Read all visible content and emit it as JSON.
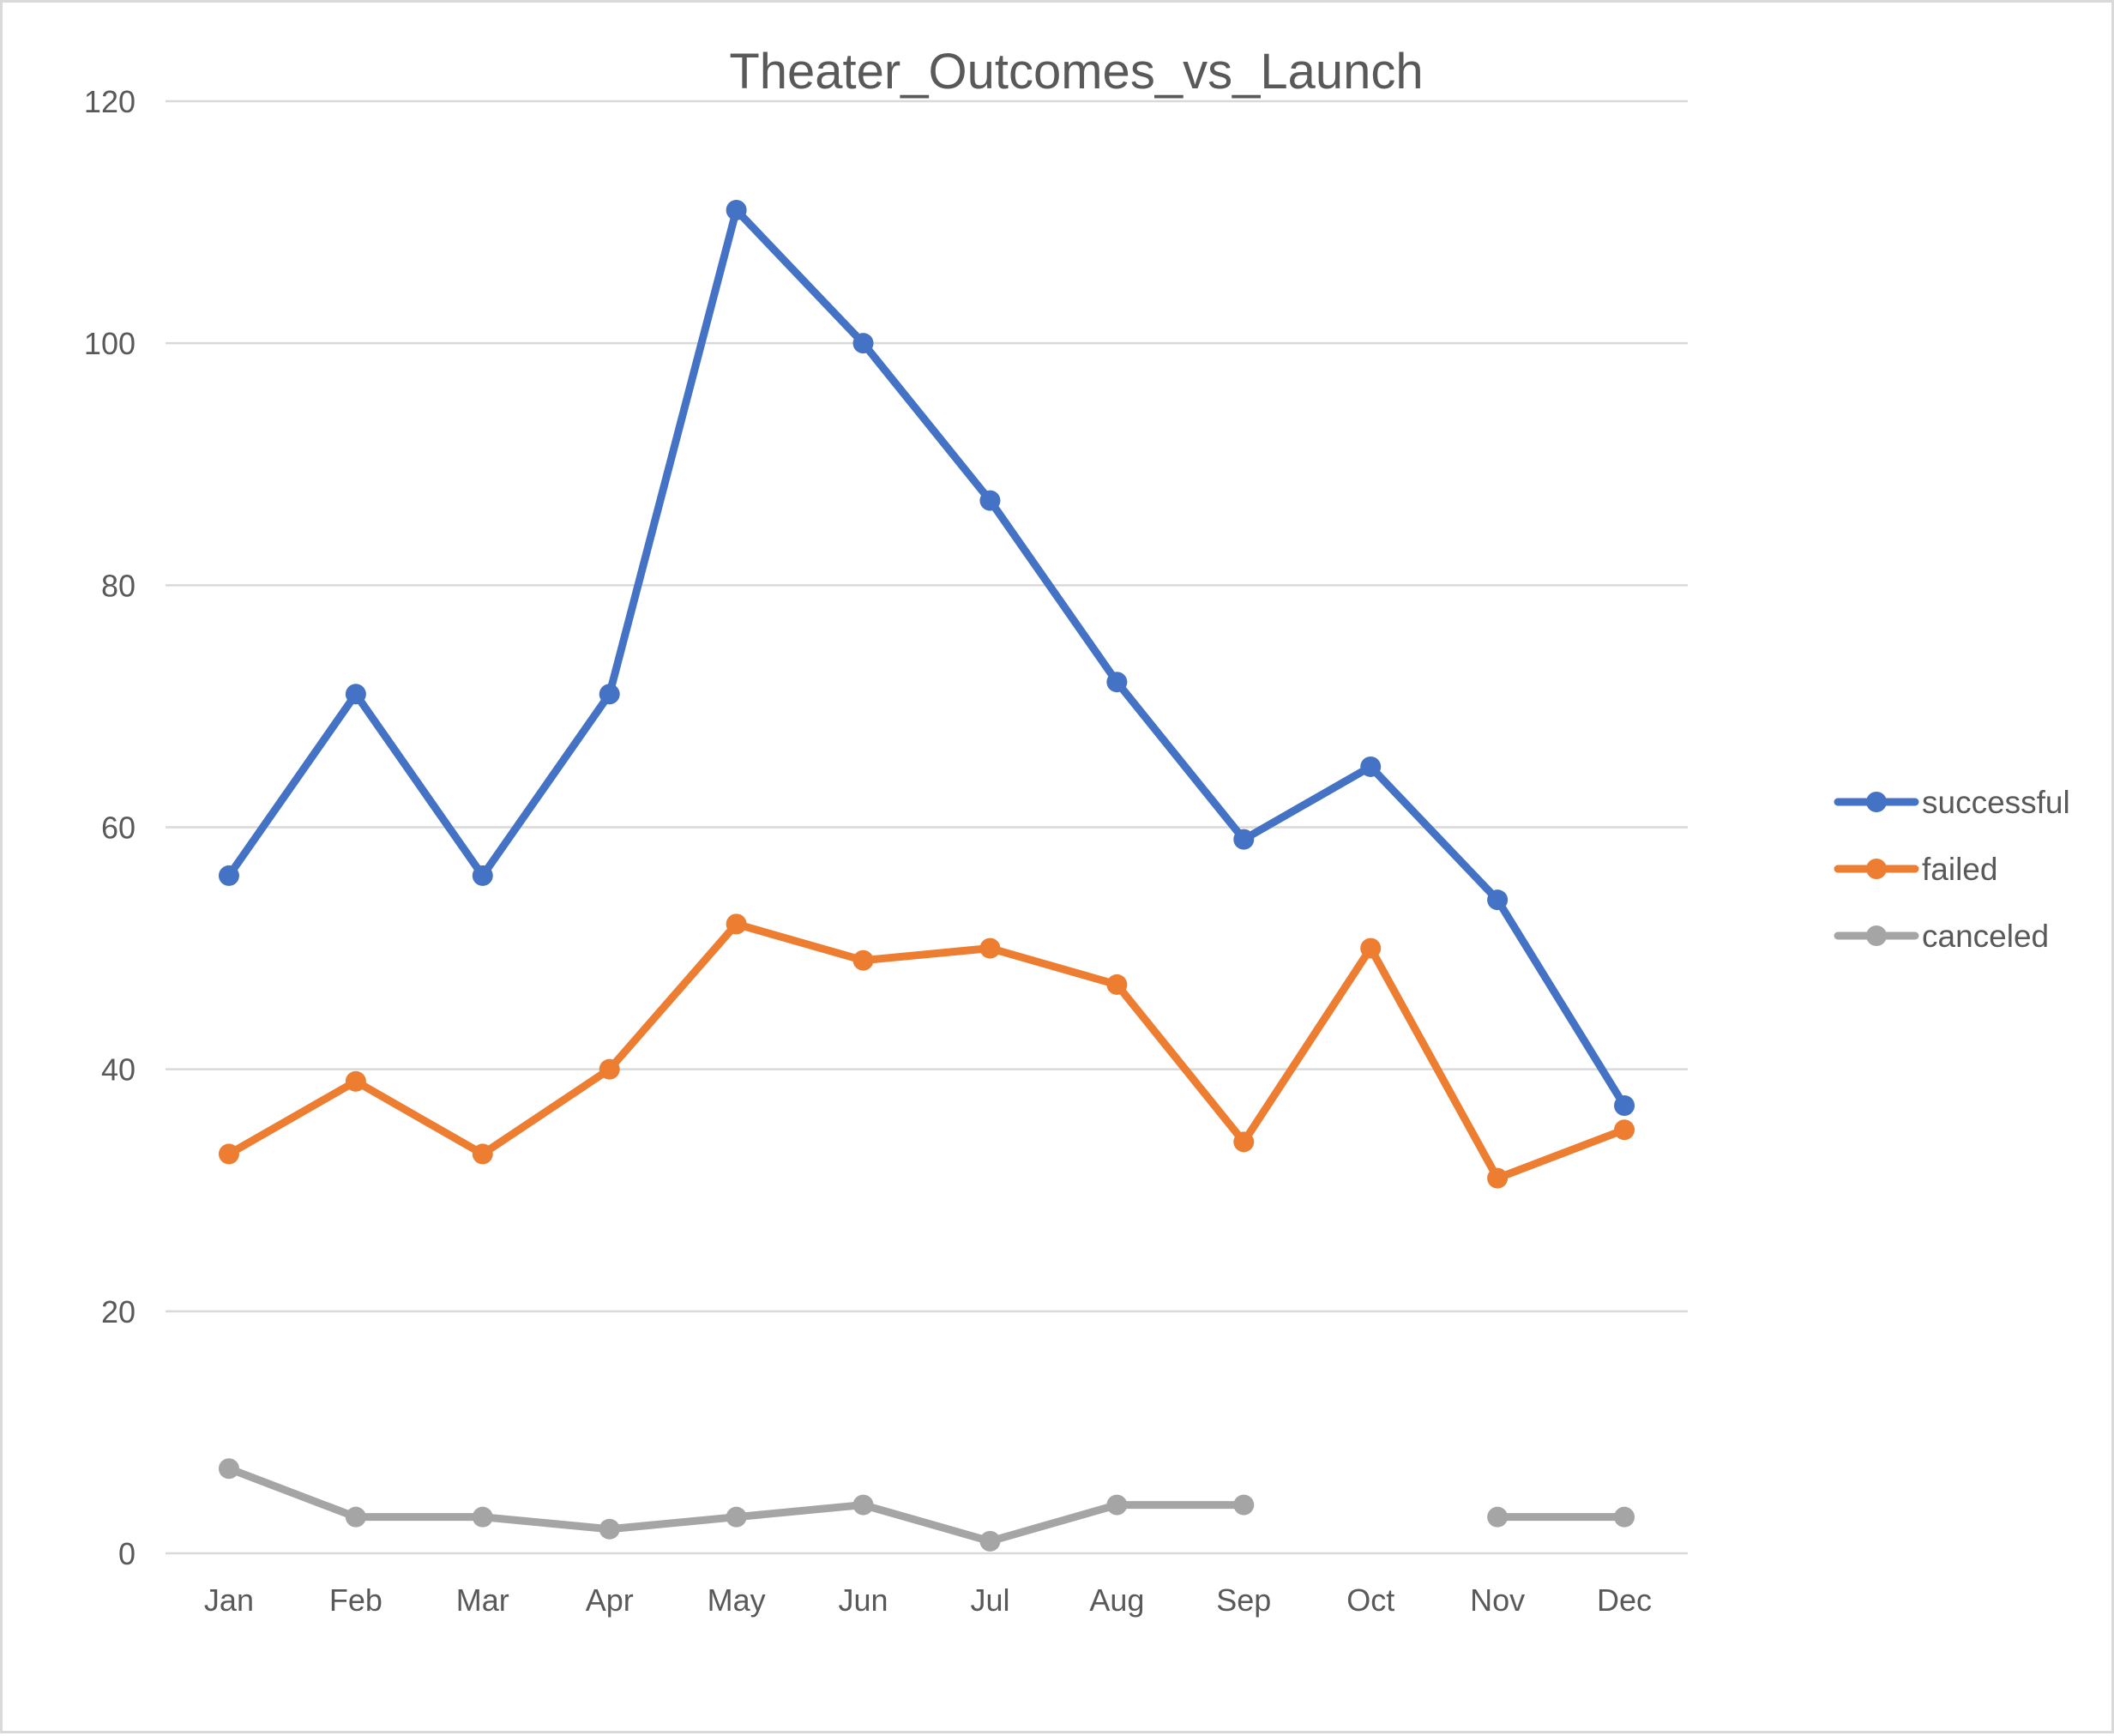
{
  "chart_data": {
    "type": "line",
    "title": "Theater_Outcomes_vs_Launch",
    "xlabel": "",
    "ylabel": "",
    "categories": [
      "Jan",
      "Feb",
      "Mar",
      "Apr",
      "May",
      "Jun",
      "Jul",
      "Aug",
      "Sep",
      "Oct",
      "Nov",
      "Dec"
    ],
    "ylim": [
      0,
      120
    ],
    "yticks": [
      0,
      20,
      40,
      60,
      80,
      100,
      120
    ],
    "grid": true,
    "legend_position": "right",
    "series": [
      {
        "name": "successful",
        "color": "#4472c4",
        "values": [
          56,
          71,
          56,
          71,
          111,
          100,
          87,
          72,
          59,
          65,
          54,
          37
        ]
      },
      {
        "name": "failed",
        "color": "#ed7d31",
        "values": [
          33,
          39,
          33,
          40,
          52,
          49,
          50,
          47,
          34,
          50,
          31,
          35
        ]
      },
      {
        "name": "canceled",
        "color": "#a5a5a5",
        "values": [
          7,
          3,
          3,
          2,
          3,
          4,
          1,
          4,
          4,
          null,
          3,
          3
        ]
      }
    ]
  }
}
